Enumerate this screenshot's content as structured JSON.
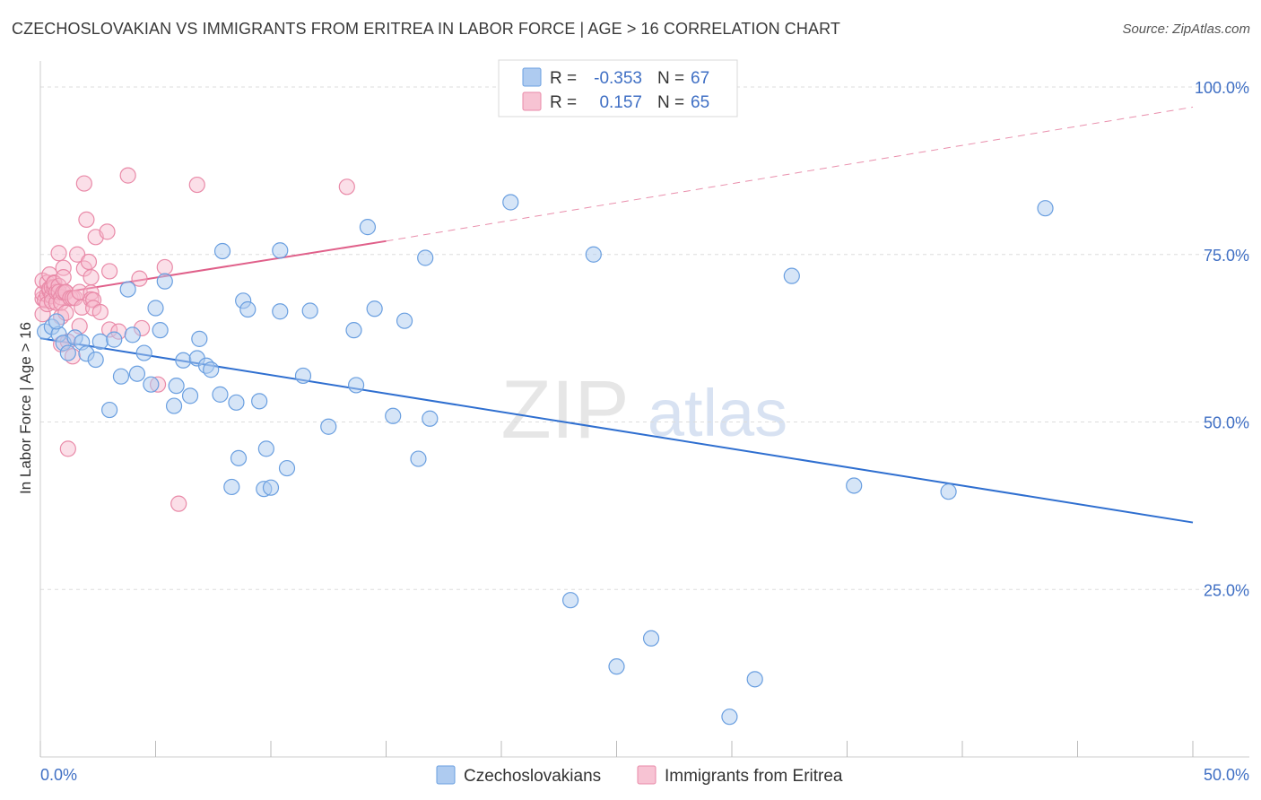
{
  "title": "CZECHOSLOVAKIAN VS IMMIGRANTS FROM ERITREA IN LABOR FORCE | AGE > 16 CORRELATION CHART",
  "source": "Source: ZipAtlas.com",
  "watermark": {
    "zip": "ZIP",
    "atlas": "atlas"
  },
  "legend": {
    "rows": [
      {
        "r_label": "R =",
        "r_value": "-0.353",
        "n_label": "N =",
        "n_value": "67"
      },
      {
        "r_label": "R =",
        "r_value": "0.157",
        "n_label": "N =",
        "n_value": "65"
      }
    ]
  },
  "colors": {
    "blue_fill": "#aecbf0",
    "blue_stroke": "#6a9fe0",
    "blue_line": "#2f6fd0",
    "pink_fill": "#f7b8cb",
    "pink_stroke": "#e98aa8",
    "pink_line": "#e0608a",
    "tick_text": "#3f6fc4",
    "grid": "#dddddd"
  },
  "chart_data": {
    "type": "scatter",
    "title": "CZECHOSLOVAKIAN VS IMMIGRANTS FROM ERITREA IN LABOR FORCE | AGE > 16 CORRELATION CHART",
    "xlabel": "",
    "ylabel": "In Labor Force | Age > 16",
    "xlim": [
      0,
      50
    ],
    "ylim": [
      0,
      100
    ],
    "x_tick_labels": [
      "0.0%",
      "50.0%"
    ],
    "y_ticks": [
      25,
      50,
      75,
      100
    ],
    "y_tick_labels": [
      "25.0%",
      "50.0%",
      "75.0%",
      "100.0%"
    ],
    "grid": true,
    "legend_position": "top-center",
    "series": [
      {
        "name": "Czechoslovakians",
        "color": "#6a9fe0",
        "r": -0.353,
        "n": 67,
        "trend": {
          "x": [
            0,
            50
          ],
          "y": [
            62.5,
            35.0
          ],
          "style": "solid"
        },
        "points": [
          [
            0.2,
            63.5
          ],
          [
            0.5,
            64.2
          ],
          [
            0.8,
            63.1
          ],
          [
            1.0,
            61.8
          ],
          [
            1.2,
            60.3
          ],
          [
            1.5,
            62.6
          ],
          [
            1.8,
            61.9
          ],
          [
            2.0,
            60.2
          ],
          [
            2.4,
            59.3
          ],
          [
            2.6,
            62.0
          ],
          [
            3.0,
            51.8
          ],
          [
            3.2,
            62.3
          ],
          [
            3.5,
            56.8
          ],
          [
            3.8,
            69.8
          ],
          [
            4.0,
            63.0
          ],
          [
            4.2,
            57.2
          ],
          [
            4.5,
            60.3
          ],
          [
            4.8,
            55.6
          ],
          [
            5.0,
            67.0
          ],
          [
            5.2,
            63.7
          ],
          [
            5.4,
            71.0
          ],
          [
            5.8,
            52.4
          ],
          [
            5.9,
            55.4
          ],
          [
            6.2,
            59.2
          ],
          [
            6.5,
            53.9
          ],
          [
            6.8,
            59.5
          ],
          [
            6.9,
            62.4
          ],
          [
            7.2,
            58.4
          ],
          [
            7.4,
            57.8
          ],
          [
            7.8,
            54.1
          ],
          [
            7.9,
            75.5
          ],
          [
            8.3,
            40.3
          ],
          [
            8.5,
            52.9
          ],
          [
            8.6,
            44.6
          ],
          [
            8.8,
            68.1
          ],
          [
            9.0,
            66.8
          ],
          [
            9.5,
            53.1
          ],
          [
            9.7,
            40.0
          ],
          [
            9.8,
            46.0
          ],
          [
            10.0,
            40.2
          ],
          [
            10.4,
            66.5
          ],
          [
            10.4,
            75.6
          ],
          [
            10.7,
            43.1
          ],
          [
            11.4,
            56.9
          ],
          [
            11.7,
            66.6
          ],
          [
            12.5,
            49.3
          ],
          [
            13.6,
            63.7
          ],
          [
            13.7,
            55.5
          ],
          [
            14.2,
            79.1
          ],
          [
            14.5,
            66.9
          ],
          [
            15.3,
            50.9
          ],
          [
            15.8,
            65.1
          ],
          [
            16.4,
            44.5
          ],
          [
            16.7,
            74.5
          ],
          [
            16.9,
            50.5
          ],
          [
            20.4,
            82.8
          ],
          [
            23.0,
            23.4
          ],
          [
            24.0,
            75.0
          ],
          [
            25.0,
            13.5
          ],
          [
            26.5,
            17.7
          ],
          [
            29.9,
            6.0
          ],
          [
            31.0,
            11.6
          ],
          [
            32.6,
            71.8
          ],
          [
            35.3,
            40.5
          ],
          [
            39.4,
            39.6
          ],
          [
            43.6,
            81.9
          ],
          [
            0.7,
            65.0
          ]
        ]
      },
      {
        "name": "Immigrants from Eritrea",
        "color": "#e98aa8",
        "r": 0.157,
        "n": 65,
        "trend": {
          "x": [
            0,
            15
          ],
          "y": [
            68.8,
            77.0
          ],
          "style": "solid",
          "extended_x": [
            15,
            50
          ],
          "extended_y": [
            77.0,
            97.0
          ],
          "extended_style": "dashed"
        },
        "points": [
          [
            0.1,
            68.4
          ],
          [
            0.1,
            66.1
          ],
          [
            0.1,
            69.2
          ],
          [
            0.1,
            71.1
          ],
          [
            0.2,
            68.2
          ],
          [
            0.3,
            70.8
          ],
          [
            0.3,
            69.0
          ],
          [
            0.3,
            67.6
          ],
          [
            0.4,
            72.0
          ],
          [
            0.4,
            69.6
          ],
          [
            0.4,
            69.9
          ],
          [
            0.5,
            68.8
          ],
          [
            0.5,
            68.0
          ],
          [
            0.5,
            70.1
          ],
          [
            0.6,
            70.8
          ],
          [
            0.6,
            70.1
          ],
          [
            0.6,
            70.7
          ],
          [
            0.7,
            67.8
          ],
          [
            0.7,
            69.4
          ],
          [
            0.8,
            75.2
          ],
          [
            0.8,
            70.3
          ],
          [
            0.8,
            69.4
          ],
          [
            0.9,
            65.7
          ],
          [
            0.9,
            61.6
          ],
          [
            0.9,
            68.6
          ],
          [
            0.9,
            67.8
          ],
          [
            1.0,
            73.0
          ],
          [
            1.0,
            71.6
          ],
          [
            1.0,
            69.3
          ],
          [
            1.1,
            69.3
          ],
          [
            1.1,
            66.3
          ],
          [
            1.1,
            69.4
          ],
          [
            1.2,
            46.0
          ],
          [
            1.2,
            62.0
          ],
          [
            1.3,
            68.5
          ],
          [
            1.4,
            68.5
          ],
          [
            1.4,
            59.8
          ],
          [
            1.5,
            68.5
          ],
          [
            1.6,
            75.0
          ],
          [
            1.7,
            64.3
          ],
          [
            1.7,
            69.4
          ],
          [
            1.8,
            67.1
          ],
          [
            1.9,
            85.6
          ],
          [
            1.9,
            72.9
          ],
          [
            2.0,
            80.2
          ],
          [
            2.1,
            73.9
          ],
          [
            2.2,
            69.3
          ],
          [
            2.2,
            71.6
          ],
          [
            2.2,
            68.3
          ],
          [
            2.3,
            68.2
          ],
          [
            2.3,
            67.0
          ],
          [
            2.4,
            77.6
          ],
          [
            2.6,
            66.4
          ],
          [
            2.9,
            78.4
          ],
          [
            3.0,
            72.5
          ],
          [
            3.0,
            63.8
          ],
          [
            3.4,
            63.5
          ],
          [
            3.8,
            86.8
          ],
          [
            4.3,
            71.4
          ],
          [
            4.4,
            64.0
          ],
          [
            5.1,
            55.6
          ],
          [
            5.4,
            73.1
          ],
          [
            6.0,
            37.8
          ],
          [
            6.8,
            85.4
          ],
          [
            13.3,
            85.1
          ]
        ]
      }
    ]
  },
  "bottom_legend": [
    {
      "label": "Czechoslovakians"
    },
    {
      "label": "Immigrants from Eritrea"
    }
  ]
}
